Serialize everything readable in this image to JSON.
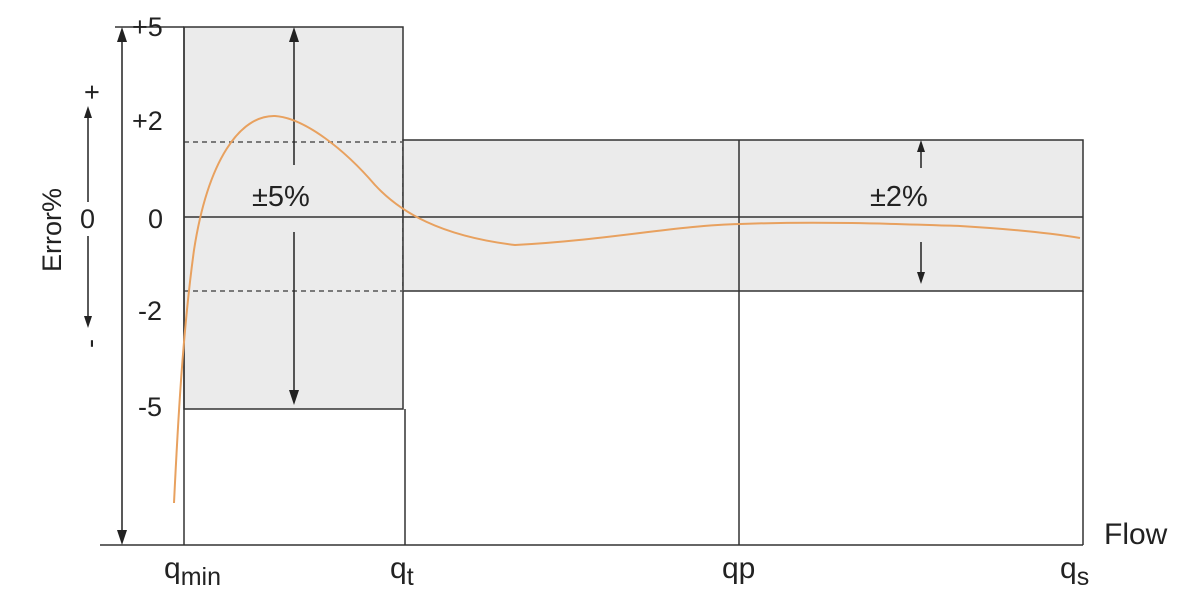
{
  "y_axis": {
    "title": "Error%",
    "plus_sign": "+",
    "minus_sign": "-",
    "zero_mark": "0",
    "ticks": [
      "+5",
      "+2",
      "0",
      "-2",
      "-5"
    ]
  },
  "x_axis": {
    "title": "Flow",
    "points": [
      {
        "base": "q",
        "sub": "min"
      },
      {
        "base": "q",
        "sub": "t"
      },
      {
        "base": "qp",
        "sub": ""
      },
      {
        "base": "q",
        "sub": "s"
      }
    ]
  },
  "zones": {
    "low_flow_label": "±5%",
    "high_flow_label": "±2%"
  },
  "colors": {
    "curve": "#e8a15f",
    "zone_fill": "#ebebeb",
    "lines": "#333333",
    "dashed": "#555555"
  }
}
